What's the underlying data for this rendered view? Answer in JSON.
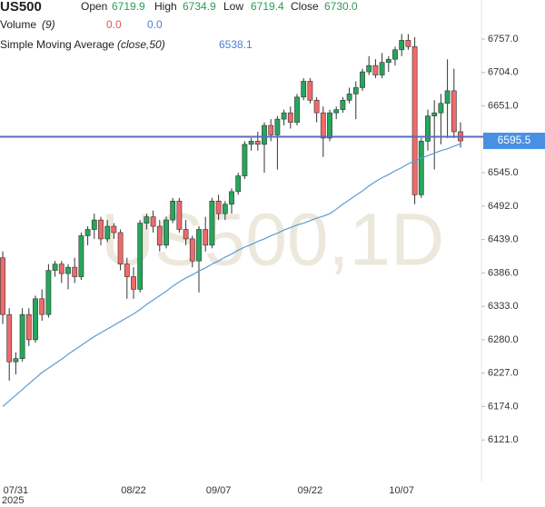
{
  "chart_data": {
    "type": "candlestick",
    "title": "US500",
    "header": {
      "open_label": "Open",
      "open": "6719.9",
      "high_label": "High",
      "high": "6734.9",
      "low_label": "Low",
      "low": "6719.4",
      "close_label": "Close",
      "close": "6730.0",
      "volume_label": "Volume",
      "volume_param": "(9)",
      "volume_value": "0.0",
      "volume_ma": "0.0",
      "sma_label": "Simple Moving Average",
      "sma_param": "(close,50)",
      "sma_value": "6538.1"
    },
    "watermark": "US500,1D",
    "year_label": "2025",
    "categories": [
      null,
      null,
      "07/31",
      null,
      null,
      null,
      null,
      null,
      null,
      null,
      null,
      null,
      null,
      null,
      null,
      null,
      null,
      null,
      null,
      null,
      "08/22",
      null,
      null,
      null,
      null,
      null,
      null,
      null,
      null,
      null,
      null,
      null,
      null,
      "09/07",
      null,
      null,
      null,
      null,
      null,
      null,
      null,
      null,
      null,
      null,
      null,
      null,
      null,
      "09/22",
      null,
      null,
      null,
      null,
      null,
      null,
      null,
      null,
      null,
      null,
      null,
      null,
      null,
      "10/07",
      null,
      null,
      null,
      null,
      null,
      null,
      null,
      null,
      null
    ],
    "series": [
      {
        "name": "US500",
        "up_color": "#26a65b",
        "down_color": "#ef6a6a",
        "open": [
          6410,
          6320,
          6245,
          6250,
          6320,
          6280,
          6345,
          6320,
          6390,
          6400,
          6385,
          6395,
          6380,
          6445,
          6455,
          6470,
          6440,
          6460,
          6450,
          6400,
          6380,
          6360,
          6465,
          6475,
          6460,
          6430,
          6470,
          6500,
          6455,
          6440,
          6405,
          6455,
          6430,
          6500,
          6480,
          6495,
          6515,
          6540,
          6590,
          6595,
          6590,
          6620,
          6605,
          6630,
          6640,
          6625,
          6665,
          6690,
          6660,
          6640,
          6600,
          6640,
          6645,
          6660,
          6670,
          6680,
          6705,
          6715,
          6700,
          6720,
          6725,
          6740,
          6755,
          6745,
          6510,
          6595,
          6635,
          6640,
          6655,
          6675,
          6610
        ],
        "high": [
          6420,
          6330,
          6260,
          6330,
          6330,
          6350,
          6360,
          6400,
          6405,
          6405,
          6400,
          6410,
          6450,
          6460,
          6480,
          6475,
          6470,
          6465,
          6455,
          6410,
          6395,
          6470,
          6480,
          6485,
          6470,
          6475,
          6505,
          6505,
          6470,
          6445,
          6460,
          6475,
          6505,
          6510,
          6500,
          6520,
          6545,
          6595,
          6600,
          6610,
          6625,
          6630,
          6635,
          6645,
          6650,
          6670,
          6695,
          6695,
          6665,
          6650,
          6645,
          6650,
          6665,
          6680,
          6690,
          6710,
          6730,
          6725,
          6735,
          6730,
          6745,
          6765,
          6765,
          6760,
          6600,
          6645,
          6660,
          6670,
          6725,
          6710,
          6625
        ],
        "low": [
          6305,
          6215,
          6225,
          6245,
          6270,
          6275,
          6310,
          6315,
          6380,
          6370,
          6360,
          6370,
          6375,
          6430,
          6440,
          6430,
          6435,
          6440,
          6390,
          6345,
          6345,
          6355,
          6455,
          6450,
          6420,
          6425,
          6465,
          6450,
          6430,
          6395,
          6355,
          6420,
          6425,
          6470,
          6470,
          6480,
          6510,
          6535,
          6580,
          6580,
          6545,
          6595,
          6550,
          6620,
          6615,
          6620,
          6660,
          6655,
          6625,
          6570,
          6595,
          6630,
          6640,
          6655,
          6630,
          6675,
          6700,
          6695,
          6695,
          6705,
          6715,
          6730,
          6740,
          6495,
          6505,
          6580,
          6550,
          6590,
          6600,
          6600,
          6585
        ],
        "close": [
          6320,
          6245,
          6250,
          6320,
          6280,
          6345,
          6320,
          6390,
          6400,
          6385,
          6395,
          6380,
          6445,
          6455,
          6470,
          6440,
          6460,
          6450,
          6400,
          6380,
          6360,
          6465,
          6475,
          6460,
          6430,
          6470,
          6500,
          6455,
          6440,
          6405,
          6455,
          6430,
          6500,
          6480,
          6495,
          6515,
          6540,
          6590,
          6595,
          6590,
          6620,
          6605,
          6630,
          6640,
          6625,
          6665,
          6690,
          6660,
          6640,
          6600,
          6640,
          6645,
          6660,
          6670,
          6680,
          6705,
          6715,
          6700,
          6720,
          6725,
          6740,
          6755,
          6745,
          6510,
          6595,
          6635,
          6640,
          6655,
          6675,
          6610,
          6595.5
        ]
      },
      {
        "name": "Simple Moving Average",
        "color": "#5b9bd5",
        "values": [
          6174,
          6183,
          6192,
          6201,
          6210,
          6219,
          6228,
          6235,
          6242,
          6249,
          6257,
          6264,
          6271,
          6278,
          6285,
          6291,
          6297,
          6303,
          6309,
          6315,
          6321,
          6328,
          6336,
          6343,
          6350,
          6357,
          6365,
          6372,
          6378,
          6383,
          6389,
          6394,
          6400,
          6405,
          6411,
          6416,
          6422,
          6427,
          6431,
          6436,
          6440,
          6445,
          6449,
          6454,
          6458,
          6462,
          6465,
          6469,
          6473,
          6476,
          6480,
          6487,
          6495,
          6502,
          6509,
          6516,
          6524,
          6531,
          6537,
          6542,
          6548,
          6553,
          6559,
          6564,
          6568,
          6572,
          6576,
          6580,
          6583,
          6587,
          6591
        ]
      }
    ],
    "hline": 6602,
    "hline_color": "#5b6abf",
    "price_tag_color": "#4a90e2",
    "ylim": [
      6055,
      6819
    ],
    "yticks": [
      {
        "value": 6757,
        "label": "6757.0"
      },
      {
        "value": 6704,
        "label": "6704.0"
      },
      {
        "value": 6651,
        "label": "6651.0"
      },
      {
        "value": 6545,
        "label": "6545.0"
      },
      {
        "value": 6492,
        "label": "6492.0"
      },
      {
        "value": 6439,
        "label": "6439.0"
      },
      {
        "value": 6386,
        "label": "6386.0"
      },
      {
        "value": 6333,
        "label": "6333.0"
      },
      {
        "value": 6280,
        "label": "6280.0"
      },
      {
        "value": 6227,
        "label": "6227.0"
      },
      {
        "value": 6174,
        "label": "6174.0"
      },
      {
        "value": 6121,
        "label": "6121.0"
      }
    ],
    "grid": false
  }
}
